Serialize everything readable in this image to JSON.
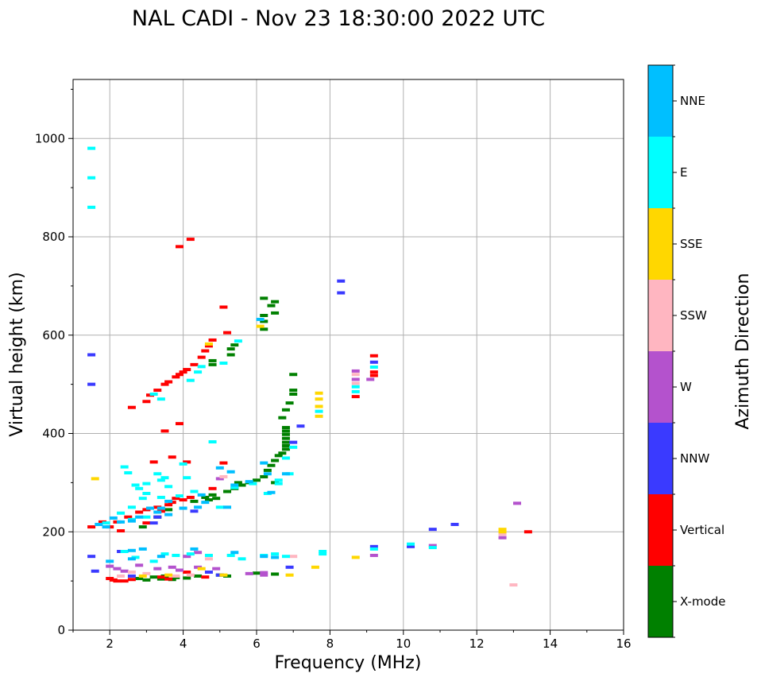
{
  "chart_data": {
    "type": "scatter",
    "title": "NAL CADI - Nov 23 18:30:00 2022 UTC",
    "xlabel": "Frequency (MHz)",
    "ylabel": "Virtual height (km)",
    "xlim": [
      1,
      16
    ],
    "ylim": [
      0,
      1120
    ],
    "xticks": [
      2,
      4,
      6,
      8,
      10,
      12,
      14,
      16
    ],
    "yticks": [
      0,
      200,
      400,
      600,
      800,
      1000
    ],
    "grid": true,
    "colorbar": {
      "label": "Azimuth Direction",
      "categories": [
        "X-mode",
        "Vertical",
        "NNW",
        "W",
        "SSW",
        "SSE",
        "E",
        "NNE"
      ],
      "colors": [
        "#008000",
        "#ff0000",
        "#3a3aff",
        "#b452cd",
        "#ffb6c1",
        "#ffd700",
        "#00ffff",
        "#00bfff"
      ]
    },
    "series": [
      {
        "name": "X-mode",
        "points": [
          [
            4.6,
            270
          ],
          [
            4.7,
            265
          ],
          [
            4.8,
            275
          ],
          [
            4.9,
            268
          ],
          [
            5.2,
            282
          ],
          [
            5.4,
            288
          ],
          [
            5.6,
            295
          ],
          [
            5.8,
            300
          ],
          [
            6.0,
            305
          ],
          [
            6.2,
            312
          ],
          [
            6.3,
            325
          ],
          [
            6.4,
            335
          ],
          [
            6.5,
            345
          ],
          [
            6.6,
            355
          ],
          [
            6.7,
            360
          ],
          [
            6.8,
            368
          ],
          [
            6.8,
            375
          ],
          [
            6.8,
            382
          ],
          [
            6.8,
            390
          ],
          [
            6.8,
            398
          ],
          [
            6.8,
            405
          ],
          [
            6.8,
            412
          ],
          [
            6.7,
            432
          ],
          [
            6.8,
            448
          ],
          [
            6.9,
            462
          ],
          [
            7.0,
            480
          ],
          [
            7.0,
            488
          ],
          [
            7.0,
            520
          ],
          [
            4.8,
            540
          ],
          [
            4.8,
            548
          ],
          [
            5.3,
            560
          ],
          [
            5.3,
            572
          ],
          [
            5.4,
            580
          ],
          [
            6.2,
            612
          ],
          [
            6.2,
            640
          ],
          [
            6.2,
            628
          ],
          [
            6.5,
            645
          ],
          [
            6.4,
            660
          ],
          [
            6.5,
            668
          ],
          [
            6.2,
            675
          ],
          [
            2.8,
            105
          ],
          [
            3.0,
            102
          ],
          [
            3.2,
            108
          ],
          [
            3.4,
            104
          ],
          [
            3.5,
            110
          ],
          [
            3.7,
            103
          ],
          [
            3.8,
            107
          ],
          [
            4.1,
            106
          ],
          [
            4.4,
            110
          ],
          [
            5.0,
            112
          ],
          [
            5.2,
            110
          ],
          [
            6.0,
            116
          ],
          [
            6.5,
            114
          ],
          [
            2.9,
            210
          ],
          [
            3.3,
            230
          ],
          [
            3.6,
            245
          ],
          [
            4.3,
            262
          ],
          [
            5.5,
            300
          ],
          [
            6.5,
            300
          ]
        ]
      },
      {
        "name": "Vertical",
        "points": [
          [
            2.0,
            210
          ],
          [
            2.2,
            220
          ],
          [
            2.5,
            230
          ],
          [
            2.8,
            240
          ],
          [
            3.0,
            245
          ],
          [
            3.3,
            250
          ],
          [
            3.6,
            255
          ],
          [
            3.7,
            260
          ],
          [
            4.0,
            265
          ],
          [
            4.2,
            270
          ],
          [
            3.1,
            478
          ],
          [
            3.3,
            488
          ],
          [
            3.5,
            500
          ],
          [
            3.6,
            505
          ],
          [
            3.8,
            515
          ],
          [
            3.9,
            520
          ],
          [
            4.0,
            525
          ],
          [
            4.1,
            530
          ],
          [
            4.3,
            540
          ],
          [
            4.5,
            555
          ],
          [
            4.6,
            568
          ],
          [
            4.7,
            578
          ],
          [
            4.8,
            590
          ],
          [
            5.2,
            605
          ],
          [
            5.1,
            657
          ],
          [
            3.9,
            780
          ],
          [
            4.2,
            795
          ],
          [
            2.6,
            453
          ],
          [
            3.0,
            465
          ],
          [
            3.5,
            405
          ],
          [
            3.9,
            420
          ],
          [
            3.2,
            342
          ],
          [
            3.7,
            352
          ],
          [
            4.1,
            342
          ],
          [
            4.8,
            288
          ],
          [
            5.1,
            340
          ],
          [
            3.4,
            242
          ],
          [
            2.0,
            105
          ],
          [
            2.1,
            102
          ],
          [
            2.2,
            100
          ],
          [
            2.4,
            100
          ],
          [
            2.6,
            103
          ],
          [
            3.4,
            108
          ],
          [
            3.6,
            104
          ],
          [
            4.1,
            118
          ],
          [
            4.6,
            108
          ],
          [
            9.2,
            518
          ],
          [
            9.2,
            525
          ],
          [
            8.7,
            475
          ],
          [
            9.2,
            558
          ],
          [
            13.4,
            200
          ],
          [
            1.5,
            210
          ],
          [
            1.8,
            220
          ],
          [
            2.3,
            202
          ],
          [
            3.0,
            218
          ],
          [
            3.8,
            268
          ]
        ]
      },
      {
        "name": "NNW",
        "points": [
          [
            8.3,
            710
          ],
          [
            8.3,
            686
          ],
          [
            9.2,
            545
          ],
          [
            9.2,
            170
          ],
          [
            10.2,
            170
          ],
          [
            10.8,
            205
          ],
          [
            11.4,
            215
          ],
          [
            7.2,
            415
          ],
          [
            7.0,
            382
          ],
          [
            6.9,
            128
          ],
          [
            5.0,
            112
          ],
          [
            4.7,
            118
          ],
          [
            2.6,
            110
          ],
          [
            3.3,
            230
          ],
          [
            1.5,
            500
          ],
          [
            1.5,
            560
          ],
          [
            2.3,
            160
          ],
          [
            3.2,
            218
          ],
          [
            4.3,
            242
          ],
          [
            1.6,
            120
          ],
          [
            1.5,
            150
          ]
        ]
      },
      {
        "name": "W",
        "points": [
          [
            13.1,
            258
          ],
          [
            12.7,
            188
          ],
          [
            10.8,
            172
          ],
          [
            9.2,
            152
          ],
          [
            9.1,
            510
          ],
          [
            8.7,
            527
          ],
          [
            8.7,
            510
          ],
          [
            5.8,
            115
          ],
          [
            6.2,
            112
          ],
          [
            6.2,
            117
          ],
          [
            5.0,
            308
          ],
          [
            4.4,
            128
          ],
          [
            4.9,
            125
          ],
          [
            3.9,
            122
          ],
          [
            3.7,
            128
          ],
          [
            3.3,
            125
          ],
          [
            2.8,
            132
          ],
          [
            2.2,
            125
          ],
          [
            2.0,
            130
          ],
          [
            4.1,
            150
          ],
          [
            4.4,
            158
          ],
          [
            2.4,
            120
          ]
        ]
      },
      {
        "name": "SSW",
        "points": [
          [
            13.0,
            92
          ],
          [
            12.7,
            195
          ],
          [
            8.7,
            520
          ],
          [
            8.7,
            502
          ],
          [
            7.0,
            150
          ],
          [
            5.1,
            312
          ],
          [
            3.0,
            115
          ],
          [
            2.6,
            118
          ],
          [
            3.8,
            110
          ],
          [
            4.2,
            112
          ],
          [
            4.7,
            145
          ],
          [
            2.3,
            110
          ]
        ]
      },
      {
        "name": "SSE",
        "points": [
          [
            12.7,
            205
          ],
          [
            12.7,
            200
          ],
          [
            8.7,
            148
          ],
          [
            7.6,
            128
          ],
          [
            6.9,
            112
          ],
          [
            7.7,
            482
          ],
          [
            7.7,
            470
          ],
          [
            7.7,
            455
          ],
          [
            7.7,
            435
          ],
          [
            6.1,
            618
          ],
          [
            4.7,
            582
          ],
          [
            5.1,
            112
          ],
          [
            3.6,
            112
          ],
          [
            2.9,
            110
          ],
          [
            1.6,
            308
          ],
          [
            4.5,
            125
          ]
        ]
      },
      {
        "name": "E",
        "points": [
          [
            8.7,
            495
          ],
          [
            8.7,
            485
          ],
          [
            9.2,
            535
          ],
          [
            7.7,
            445
          ],
          [
            7.0,
            372
          ],
          [
            6.8,
            350
          ],
          [
            6.9,
            318
          ],
          [
            6.6,
            305
          ],
          [
            6.6,
            298
          ],
          [
            6.3,
            278
          ],
          [
            5.9,
            298
          ],
          [
            5.4,
            290
          ],
          [
            5.5,
            588
          ],
          [
            5.1,
            543
          ],
          [
            4.2,
            508
          ],
          [
            4.5,
            536
          ],
          [
            4.4,
            525
          ],
          [
            4.0,
            338
          ],
          [
            4.1,
            310
          ],
          [
            3.5,
            310
          ],
          [
            3.6,
            292
          ],
          [
            3.4,
            305
          ],
          [
            3.3,
            318
          ],
          [
            3.0,
            298
          ],
          [
            2.8,
            288
          ],
          [
            2.7,
            295
          ],
          [
            2.5,
            320
          ],
          [
            2.4,
            332
          ],
          [
            3.0,
            278
          ],
          [
            3.4,
            270
          ],
          [
            3.9,
            273
          ],
          [
            4.3,
            282
          ],
          [
            5.0,
            250
          ],
          [
            4.8,
            383
          ],
          [
            2.9,
            268
          ],
          [
            2.6,
            250
          ],
          [
            2.3,
            238
          ],
          [
            1.9,
            218
          ],
          [
            2.6,
            225
          ],
          [
            3.0,
            230
          ],
          [
            3.2,
            480
          ],
          [
            3.4,
            470
          ],
          [
            1.5,
            980
          ],
          [
            1.5,
            920
          ],
          [
            1.5,
            860
          ],
          [
            3.8,
            152
          ],
          [
            4.2,
            155
          ],
          [
            4.7,
            152
          ],
          [
            5.3,
            152
          ],
          [
            5.6,
            145
          ],
          [
            6.2,
            152
          ],
          [
            6.5,
            155
          ],
          [
            6.8,
            150
          ],
          [
            7.8,
            155
          ],
          [
            9.2,
            165
          ],
          [
            10.2,
            175
          ],
          [
            10.8,
            168
          ],
          [
            7.8,
            160
          ],
          [
            2.7,
            148
          ],
          [
            3.2,
            140
          ],
          [
            2.4,
            160
          ],
          [
            3.5,
            155
          ]
        ]
      },
      {
        "name": "NNE",
        "points": [
          [
            5.4,
            295
          ],
          [
            5.2,
            250
          ],
          [
            5.0,
            330
          ],
          [
            4.6,
            260
          ],
          [
            4.4,
            250
          ],
          [
            4.0,
            248
          ],
          [
            3.6,
            235
          ],
          [
            3.3,
            240
          ],
          [
            3.1,
            248
          ],
          [
            2.8,
            230
          ],
          [
            2.6,
            222
          ],
          [
            2.3,
            220
          ],
          [
            2.1,
            228
          ],
          [
            1.9,
            210
          ],
          [
            1.7,
            215
          ],
          [
            3.4,
            248
          ],
          [
            3.6,
            262
          ],
          [
            4.5,
            275
          ],
          [
            5.8,
            302
          ],
          [
            5.3,
            322
          ],
          [
            6.3,
            318
          ],
          [
            6.2,
            340
          ],
          [
            6.4,
            280
          ],
          [
            6.8,
            318
          ],
          [
            6.5,
            148
          ],
          [
            6.2,
            150
          ],
          [
            5.4,
            158
          ],
          [
            4.3,
            165
          ],
          [
            2.9,
            165
          ],
          [
            2.6,
            145
          ],
          [
            2.0,
            140
          ],
          [
            2.6,
            162
          ],
          [
            3.4,
            150
          ],
          [
            6.1,
            632
          ]
        ]
      }
    ]
  }
}
